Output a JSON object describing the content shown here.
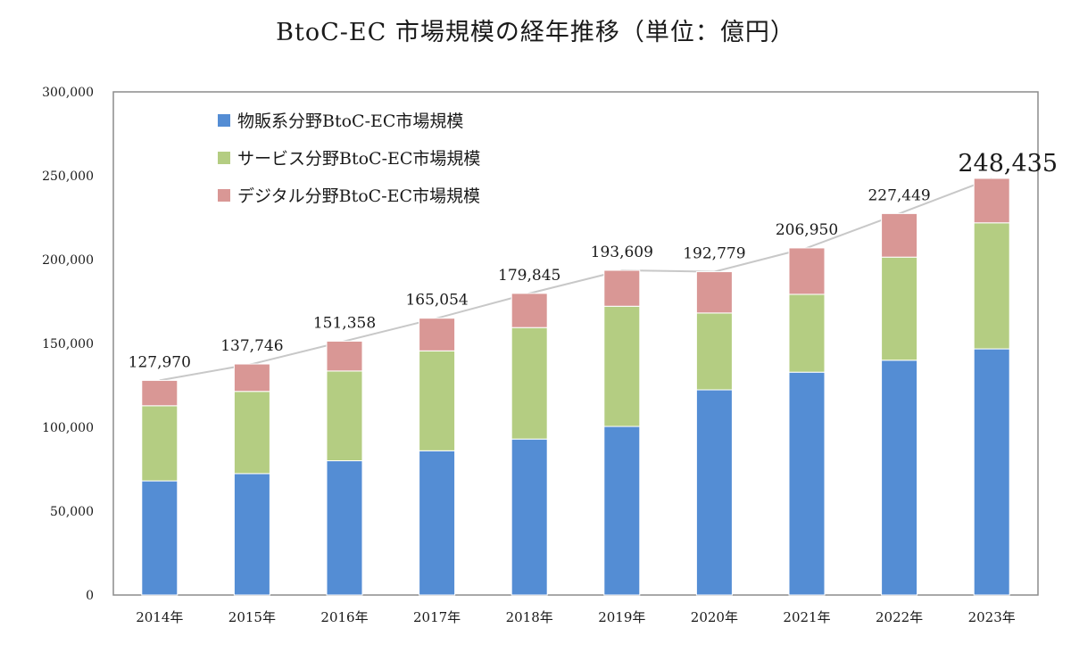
{
  "chart_data": {
    "type": "bar",
    "stacked": true,
    "title": "BtoC-EC 市場規模の経年推移（単位：億円）",
    "categories": [
      "2014年",
      "2015年",
      "2016年",
      "2017年",
      "2018年",
      "2019年",
      "2020年",
      "2021年",
      "2022年",
      "2023年"
    ],
    "series": [
      {
        "name": "物販系分野BtoC-EC市場規模",
        "color": "#548dd4",
        "values": [
          68043,
          72398,
          80043,
          86008,
          92992,
          100515,
          122333,
          132865,
          139997,
          146760
        ]
      },
      {
        "name": "サービス分野BtoC-EC市場規模",
        "color": "#b4cd82",
        "values": [
          44816,
          49014,
          53532,
          59568,
          66471,
          71672,
          45832,
          46424,
          61477,
          75169
        ]
      },
      {
        "name": "デジタル分野BtoC-EC市場規模",
        "color": "#d99795",
        "values": [
          15111,
          16334,
          17783,
          19478,
          20382,
          21422,
          24614,
          27661,
          25975,
          26506
        ]
      }
    ],
    "totals": [
      "127,970",
      "137,746",
      "151,358",
      "165,054",
      "179,845",
      "193,609",
      "192,779",
      "206,950",
      "227,449",
      "248,435"
    ],
    "totals_values": [
      127970,
      137746,
      151358,
      165054,
      179845,
      193609,
      192779,
      206950,
      227449,
      248435
    ],
    "y_ticks": [
      "0",
      "50,000",
      "100,000",
      "150,000",
      "200,000",
      "250,000",
      "300,000"
    ],
    "ylim": [
      0,
      300000
    ],
    "grid": false,
    "legend_position": "top-left"
  }
}
